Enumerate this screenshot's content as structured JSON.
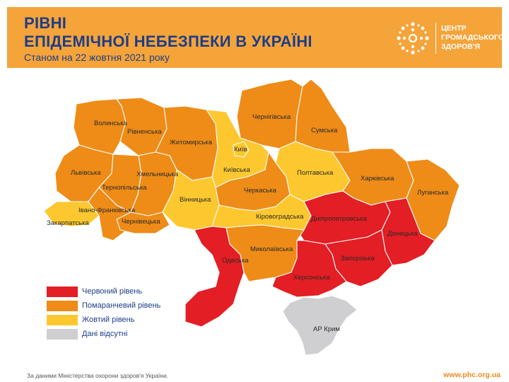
{
  "header": {
    "title_line1": "РІВНІ",
    "title_line2": "ЕПІДЕМІЧНОЇ НЕБЕЗПЕКИ В УКРАЇНІ",
    "subtitle": "Станом на 22 жовтня 2021 року",
    "background_color": "#f5a43a",
    "title_color": "#1d3d87"
  },
  "logo": {
    "line1": "ЦЕНТР",
    "line2": "ГРОМАДСЬКОГО",
    "line3": "ЗДОРОВ'Я",
    "icon": "snowflake-ornament-icon"
  },
  "colors": {
    "red": "#e31e24",
    "orange": "#ee8c17",
    "yellow": "#fdc82f",
    "gray": "#cfcfd1"
  },
  "regions": [
    {
      "name": "Волинська",
      "level": "orange"
    },
    {
      "name": "Рівненська",
      "level": "orange"
    },
    {
      "name": "Житомирська",
      "level": "orange"
    },
    {
      "name": "Чернігівська",
      "level": "orange"
    },
    {
      "name": "Сумська",
      "level": "orange"
    },
    {
      "name": "Київ",
      "level": "yellow"
    },
    {
      "name": "Київська",
      "level": "yellow"
    },
    {
      "name": "Полтавська",
      "level": "yellow"
    },
    {
      "name": "Харківська",
      "level": "orange"
    },
    {
      "name": "Луганська",
      "level": "orange"
    },
    {
      "name": "Львівська",
      "level": "orange"
    },
    {
      "name": "Тернопільська",
      "level": "orange"
    },
    {
      "name": "Хмельницька",
      "level": "orange"
    },
    {
      "name": "Вінницька",
      "level": "yellow"
    },
    {
      "name": "Черкаська",
      "level": "orange"
    },
    {
      "name": "Кіровоградська",
      "level": "yellow"
    },
    {
      "name": "Закарпатська",
      "level": "yellow"
    },
    {
      "name": "Івано-Франківська",
      "level": "orange"
    },
    {
      "name": "Чернівецька",
      "level": "orange"
    },
    {
      "name": "Дніпропетровська",
      "level": "red"
    },
    {
      "name": "Донецька",
      "level": "red"
    },
    {
      "name": "Запорізька",
      "level": "red"
    },
    {
      "name": "Одеська",
      "level": "red"
    },
    {
      "name": "Миколаївська",
      "level": "orange"
    },
    {
      "name": "Херсонська",
      "level": "red"
    },
    {
      "name": "АР Крим",
      "level": "gray"
    }
  ],
  "legend": [
    {
      "label": "Червоний рівень",
      "color": "#e31e24"
    },
    {
      "label": "Помаранчевий рівень",
      "color": "#ee8c17"
    },
    {
      "label": "Жовтий рівень",
      "color": "#fdc82f"
    },
    {
      "label": "Дані відсутні",
      "color": "#cfcfd1"
    }
  ],
  "footer": {
    "source": "За даними Міністерства охорони здоров'я України.",
    "url": "www.phc.org.ua"
  }
}
